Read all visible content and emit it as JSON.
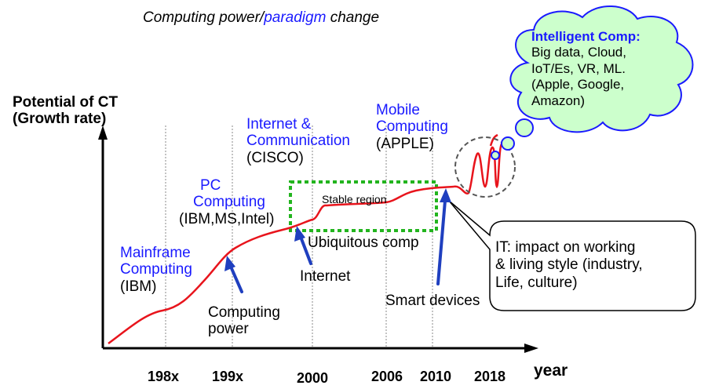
{
  "title": {
    "part1": "Computing power/",
    "part2": "paradigm",
    "part3": " change"
  },
  "y_axis_label": {
    "line1": "Potential of CT",
    "line2": "(Growth rate)"
  },
  "x_axis_label": "year",
  "x_ticks": [
    "198x",
    "199x",
    "2000",
    "2006",
    "2010",
    "2018"
  ],
  "eras": {
    "mainframe": {
      "line1": "Mainframe",
      "line2": "Computing",
      "company": "(IBM)"
    },
    "pc": {
      "line1": "PC",
      "line2": "Computing",
      "company": "(IBM,MS,Intel)"
    },
    "internet": {
      "line1": "Internet &",
      "line2": "Communication",
      "company": "(CISCO)"
    },
    "mobile": {
      "line1": "Mobile",
      "line2": "Computing",
      "company": "(APPLE)"
    }
  },
  "stable_region_label": "Stable region",
  "annotations": {
    "computing_power": {
      "line1": "Computing",
      "line2": "power"
    },
    "internet": "Internet",
    "ubiquitous": "Ubiquitous comp",
    "smart_devices": "Smart devices"
  },
  "thought_cloud": {
    "heading": "Intelligent Comp:",
    "line1": "Big data, Cloud,",
    "line2": "IoT/Es, VR, ML.",
    "line3": "(Apple, Google,",
    "line4": "Amazon)"
  },
  "callout": {
    "line1": "IT: impact on working",
    "line2": "& living style (industry,",
    "line3": "Life, culture)"
  },
  "colors": {
    "curve": "#e8141c",
    "era_text": "#1a1aff",
    "arrow": "#1f3fbf",
    "stable_box": "#22b41e",
    "cloud_fill": "#ccffcc",
    "cloud_stroke": "#1a1aff"
  }
}
